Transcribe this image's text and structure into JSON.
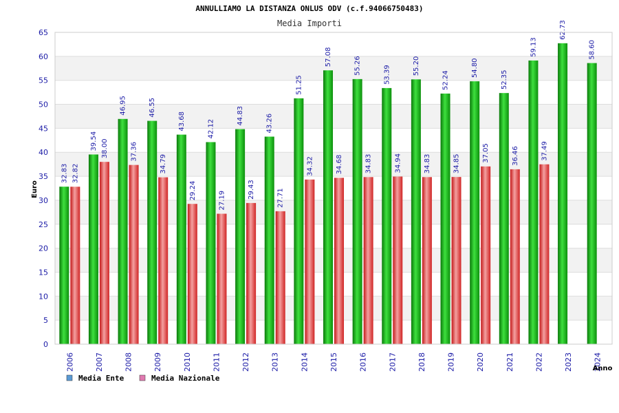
{
  "chart_data": {
    "type": "bar",
    "title": "ANNULLIAMO LA DISTANZA ONLUS ODV (c.f.94066750483)",
    "subtitle": "Media Importi",
    "xlabel": "Anno",
    "ylabel": "Euro",
    "ylim": [
      0,
      65
    ],
    "ytick_step": 5,
    "grid": true,
    "legend_position": "bottom-left",
    "categories": [
      "2006",
      "2007",
      "2008",
      "2009",
      "2010",
      "2011",
      "2012",
      "2013",
      "2014",
      "2015",
      "2016",
      "2017",
      "2018",
      "2019",
      "2020",
      "2021",
      "2022",
      "2023",
      "2024"
    ],
    "series": [
      {
        "name": "Media Ente",
        "color": "#1fb81f",
        "legend_color": "#5b9bd5",
        "values": [
          32.83,
          39.54,
          46.95,
          46.55,
          43.68,
          42.12,
          44.83,
          43.26,
          51.25,
          57.08,
          55.26,
          53.39,
          55.2,
          52.24,
          54.8,
          52.35,
          59.13,
          62.73,
          58.6
        ],
        "labels": [
          "32.83",
          "39.54",
          "46.95",
          "46.55",
          "43.68",
          "42.12",
          "44.83",
          "43.26",
          "51.25",
          "57.08",
          "55.26",
          "53.39",
          "55.20",
          "52.24",
          "54.80",
          "52.35",
          "59.13",
          "62.73",
          "58.60"
        ]
      },
      {
        "name": "Media Nazionale",
        "color": "#e03a3a",
        "legend_color": "#e07ab0",
        "values": [
          32.82,
          38.0,
          37.36,
          34.79,
          29.24,
          27.19,
          29.43,
          27.71,
          34.32,
          34.68,
          34.83,
          34.94,
          34.83,
          34.85,
          37.05,
          36.46,
          37.49,
          null,
          null
        ],
        "labels": [
          "32.82",
          "38.00",
          "37.36",
          "34.79",
          "29.24",
          "27.19",
          "29.43",
          "27.71",
          "34.32",
          "34.68",
          "34.83",
          "34.94",
          "34.83",
          "34.85",
          "37.05",
          "36.46",
          "37.49",
          null,
          null
        ]
      }
    ]
  }
}
